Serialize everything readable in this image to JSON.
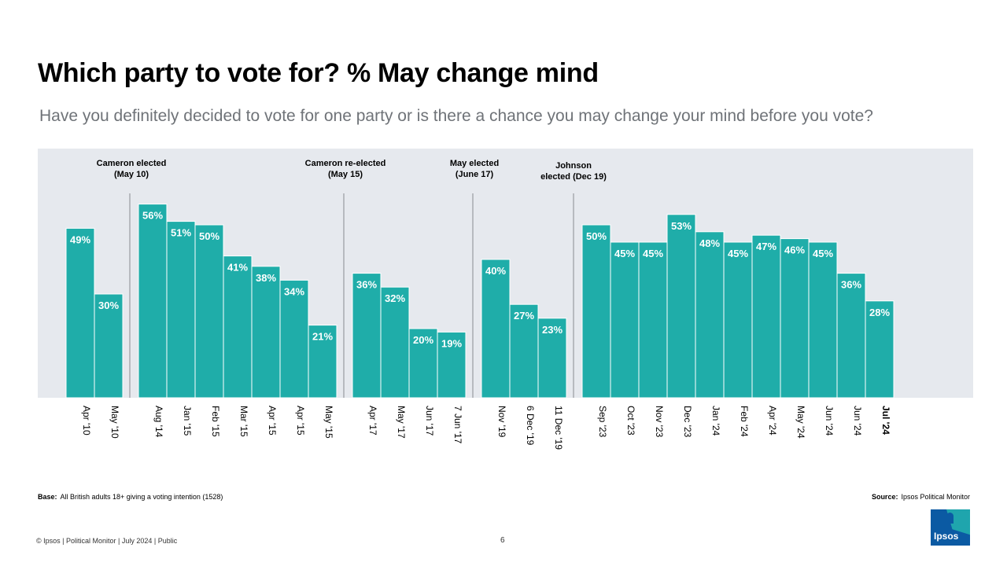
{
  "title": "Which party to vote for? % May change mind",
  "subtitle": "Have you definitely decided to vote for one party or is there a chance you may change your mind before you vote?",
  "base_label": "Base:",
  "base_text": "All British adults 18+ giving a voting intention (1528)",
  "source_label": "Source:",
  "source_text": "Ipsos Political Monitor",
  "footer_text": "© Ipsos | Political Monitor | July 2024 | Public",
  "page_number": "6",
  "logo_text": "Ipsos",
  "colors": {
    "bar": "#1fada9",
    "panel": "#e6e9ee",
    "divider": "#888c90"
  },
  "chart_data": {
    "type": "bar",
    "title": "",
    "ylim": [
      0,
      70
    ],
    "groups": [
      {
        "annotation": [],
        "categories": [
          "Apr '10",
          "May '10"
        ],
        "values": [
          49,
          30
        ]
      },
      {
        "annotation": [
          "Cameron elected",
          "(May 10)"
        ],
        "categories": [
          "Aug '14",
          "Jan '15",
          "Feb '15",
          "Mar '15",
          "Apr '15",
          "Apr '15",
          "May '15"
        ],
        "values": [
          56,
          51,
          50,
          41,
          38,
          34,
          21
        ]
      },
      {
        "annotation": [
          "Cameron re-elected",
          "(May 15)"
        ],
        "categories": [
          "Apr '17",
          "May '17",
          "Jun '17",
          "7 Jun '17"
        ],
        "values": [
          36,
          32,
          20,
          19
        ]
      },
      {
        "annotation": [
          "May elected",
          "(June 17)"
        ],
        "categories": [
          "Nov '19",
          "6 Dec '19",
          "11 Dec '19"
        ],
        "values": [
          40,
          27,
          23
        ]
      },
      {
        "annotation": [
          "Johnson",
          "elected (Dec 19)"
        ],
        "categories": [
          "Sep '23",
          "Oct '23",
          "Nov '23",
          "Dec '23",
          "Jan '24",
          "Feb '24",
          "Apr '24",
          "May '24",
          "Jun '24",
          "Jun '24",
          "Jul '24"
        ],
        "values": [
          50,
          45,
          45,
          53,
          48,
          45,
          47,
          46,
          45,
          36,
          28
        ]
      }
    ],
    "value_suffix": "%",
    "highlight_category": "Jul '24"
  }
}
